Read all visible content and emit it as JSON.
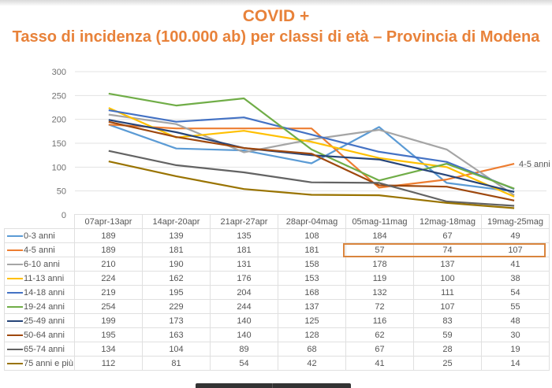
{
  "title": {
    "line1": "COVID +",
    "line2": "Tasso di incidenza (100.000 ab) per classi di età – Provincia di Modena"
  },
  "chart_data": {
    "type": "line",
    "title": "COVID + Tasso di incidenza (100.000 ab) per classi di età – Provincia di Modena",
    "xlabel": "",
    "ylabel": "",
    "ylim": [
      0,
      300
    ],
    "yticks": [
      0,
      50,
      100,
      150,
      200,
      250,
      300
    ],
    "grid": true,
    "legend_position": "data-table",
    "categories": [
      "07apr-13apr",
      "14apr-20apr",
      "21apr-27apr",
      "28apr-04mag",
      "05mag-11mag",
      "12mag-18mag",
      "19mag-25mag"
    ],
    "series": [
      {
        "name": "0-3 anni",
        "color": "#5b9bd5",
        "values": [
          189,
          139,
          135,
          108,
          184,
          67,
          49
        ]
      },
      {
        "name": "4-5 anni",
        "color": "#ed7d31",
        "values": [
          189,
          181,
          181,
          181,
          57,
          74,
          107
        ]
      },
      {
        "name": "6-10 anni",
        "color": "#a5a5a5",
        "values": [
          210,
          190,
          131,
          158,
          178,
          137,
          41
        ]
      },
      {
        "name": "11-13 anni",
        "color": "#ffc000",
        "values": [
          224,
          162,
          176,
          153,
          119,
          100,
          38
        ]
      },
      {
        "name": "14-18 anni",
        "color": "#4472c4",
        "values": [
          219,
          195,
          204,
          168,
          132,
          111,
          54
        ]
      },
      {
        "name": "19-24 anni",
        "color": "#70ad47",
        "values": [
          254,
          229,
          244,
          137,
          72,
          107,
          55
        ]
      },
      {
        "name": "25-49 anni",
        "color": "#264478",
        "values": [
          199,
          173,
          140,
          125,
          116,
          83,
          48
        ]
      },
      {
        "name": "50-64 anni",
        "color": "#9e480e",
        "values": [
          195,
          163,
          140,
          128,
          62,
          59,
          30
        ]
      },
      {
        "name": "65-74 anni",
        "color": "#636363",
        "values": [
          134,
          104,
          89,
          68,
          67,
          28,
          19
        ]
      },
      {
        "name": "75 anni e più",
        "color": "#997300",
        "values": [
          112,
          81,
          54,
          42,
          41,
          25,
          14
        ]
      }
    ],
    "annotations": [
      {
        "text": "4-5 anni",
        "series": "4-5 anni",
        "position": "end of line"
      },
      {
        "type": "highlight-box",
        "series": "4-5 anni",
        "categories": [
          "05mag-11mag",
          "12mag-18mag",
          "19mag-25mag"
        ],
        "color": "#d9843d"
      }
    ]
  },
  "end_label": "4-5 anni",
  "highlight_color": "#d9843d"
}
